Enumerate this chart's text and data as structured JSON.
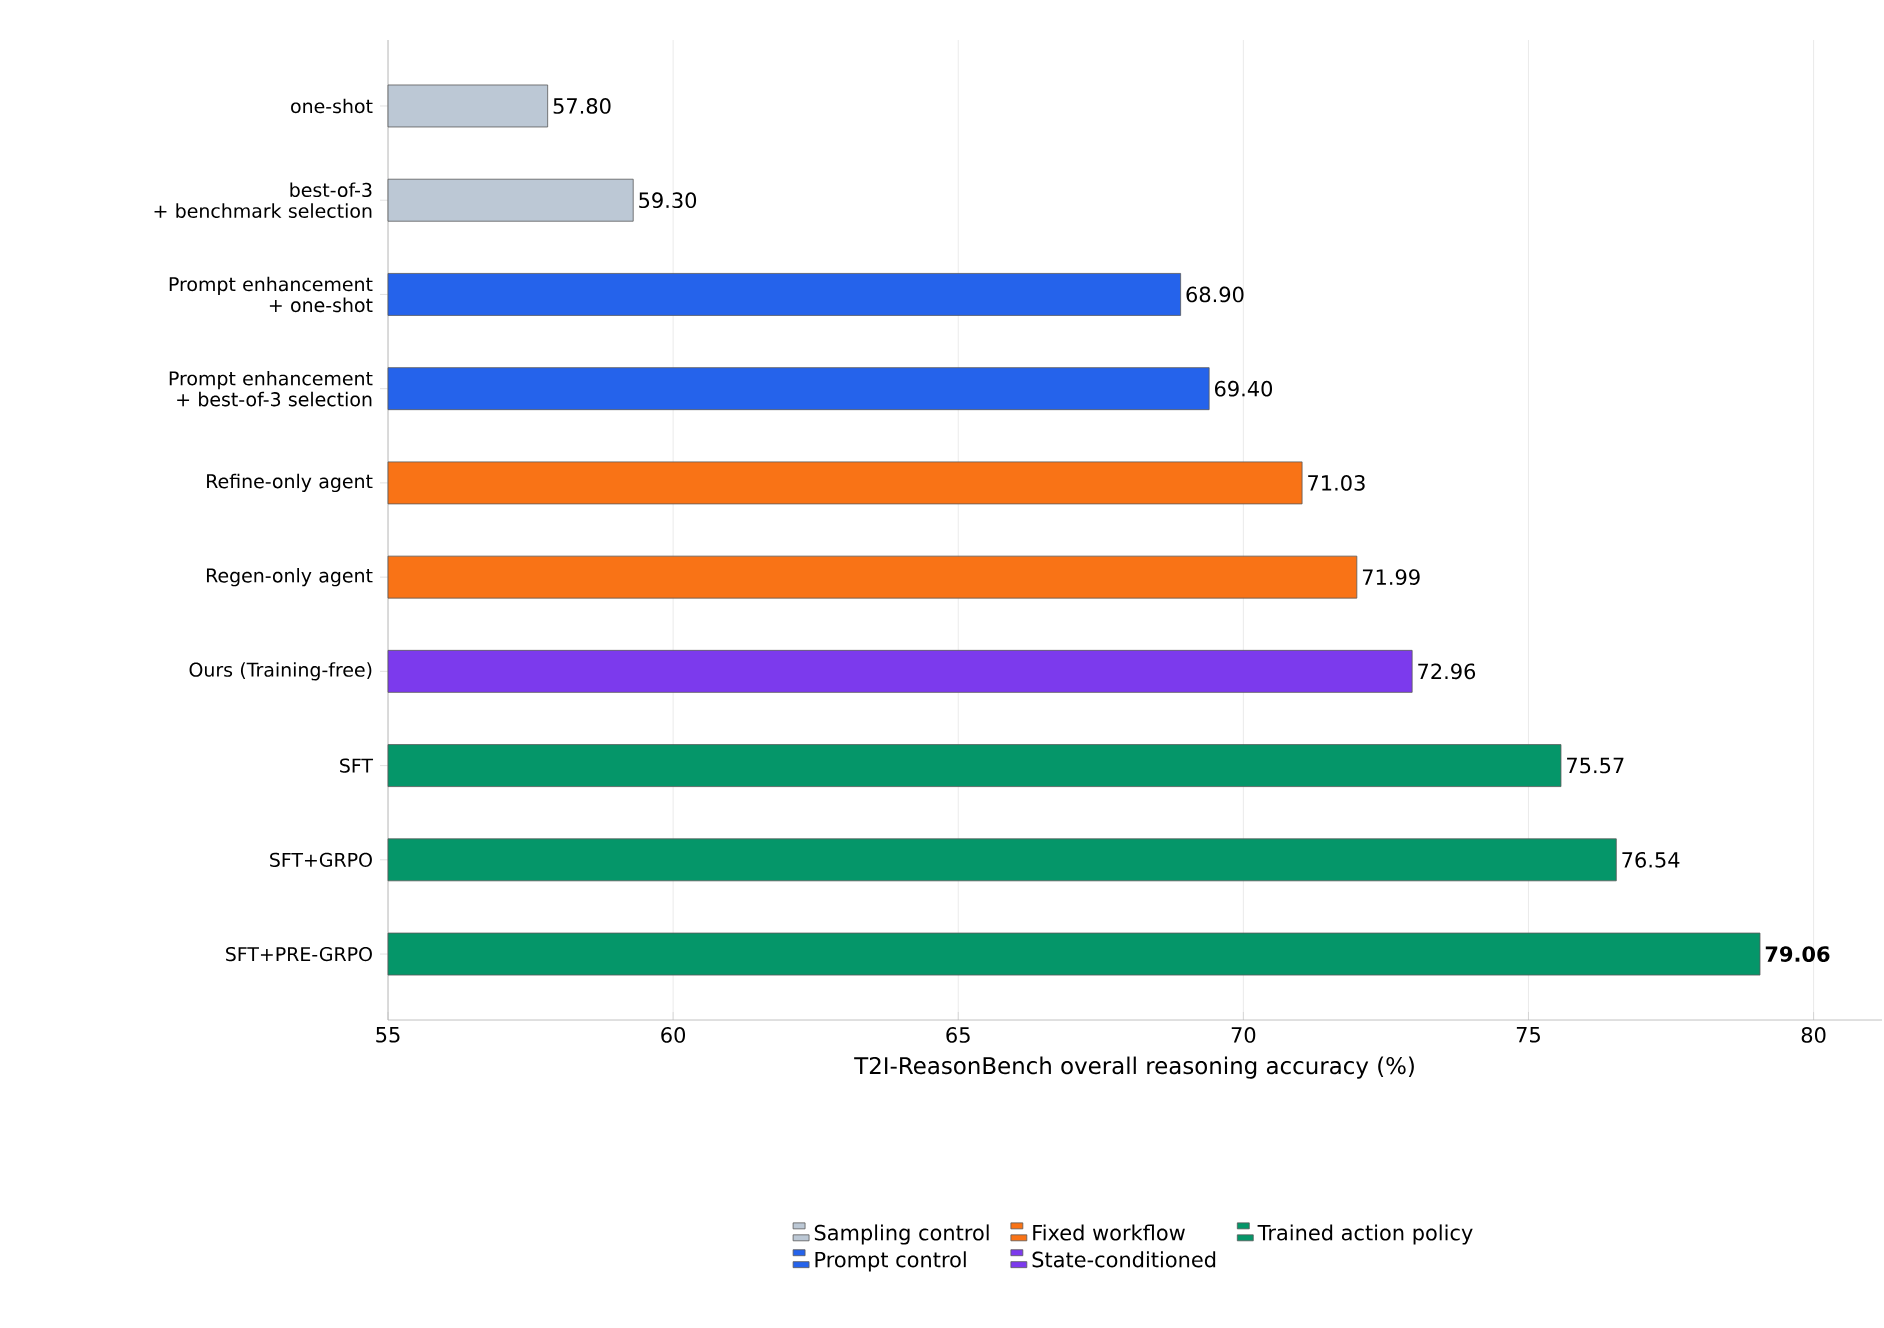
{
  "chart_data": {
    "type": "bar",
    "orientation": "horizontal",
    "xlabel": "T2I-ReasonBench overall reasoning accuracy (%)",
    "categories": [
      "one-shot",
      "best-of-3\n+ benchmark selection",
      "Prompt enhancement\n+ one-shot",
      "Prompt enhancement\n+ best-of-3 selection",
      "Refine-only agent",
      "Regen-only agent",
      "Ours (Training-free)",
      "SFT",
      "SFT+GRPO",
      "SFT+PRE-GRPO"
    ],
    "series": [
      {
        "name": "Sampling control",
        "color": "#bcc8d5",
        "values": [
          57.8,
          59.3,
          null,
          null,
          null,
          null,
          null,
          null,
          null,
          null
        ]
      },
      {
        "name": "Prompt control",
        "color": "#2563eb",
        "values": [
          null,
          null,
          68.9,
          69.4,
          null,
          null,
          null,
          null,
          null,
          null
        ]
      },
      {
        "name": "Fixed workflow",
        "color": "#f97316",
        "values": [
          null,
          null,
          null,
          null,
          71.03,
          71.99,
          null,
          null,
          null,
          null
        ]
      },
      {
        "name": "State-conditioned",
        "color": "#7c3aed",
        "values": [
          null,
          null,
          null,
          null,
          null,
          null,
          72.96,
          null,
          null,
          null
        ]
      },
      {
        "name": "Trained action policy",
        "color": "#059669",
        "values": [
          null,
          null,
          null,
          null,
          null,
          null,
          null,
          75.57,
          76.54,
          79.06
        ]
      }
    ],
    "value_labels": [
      "57.80",
      "59.30",
      "68.90",
      "69.40",
      "71.03",
      "71.99",
      "72.96",
      "75.57",
      "76.54",
      "**79.06**"
    ],
    "xlim": [
      55,
      81.2
    ],
    "xticks": [
      55,
      60,
      65,
      70,
      75,
      80
    ],
    "grid": "x",
    "legend": "bottom"
  }
}
